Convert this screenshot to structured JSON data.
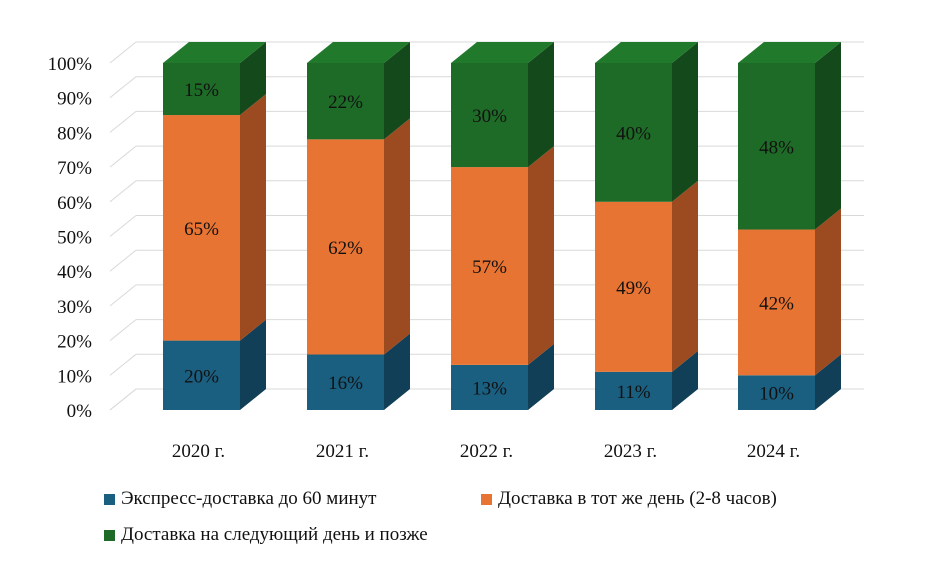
{
  "chart_data": {
    "type": "bar",
    "stacked": true,
    "percent": true,
    "three_d": true,
    "title": "",
    "xlabel": "",
    "ylabel": "",
    "ylim": [
      0,
      100
    ],
    "y_ticks": [
      "0%",
      "10%",
      "20%",
      "30%",
      "40%",
      "50%",
      "60%",
      "70%",
      "80%",
      "90%",
      "100%"
    ],
    "categories": [
      "2020 г.",
      "2021 г.",
      "2022 г.",
      "2023 г.",
      "2024 г."
    ],
    "series": [
      {
        "name": "Экспресс-доставка до 60 минут",
        "values": [
          20,
          16,
          13,
          11,
          10
        ],
        "labels": [
          "20%",
          "16%",
          "13%",
          "11%",
          "10%"
        ],
        "color": "#1a5f80",
        "side_color": "#113f57",
        "top_color": "#1e6c91"
      },
      {
        "name": "Доставка в тот же день (2-8 часов)",
        "values": [
          65,
          62,
          57,
          49,
          42
        ],
        "labels": [
          "65%",
          "62%",
          "57%",
          "49%",
          "42%"
        ],
        "color": "#e87433",
        "side_color": "#9c4a1f",
        "top_color": "#f08a4e"
      },
      {
        "name": "Доставка на следующий день и позже",
        "values": [
          15,
          22,
          30,
          40,
          48
        ],
        "labels": [
          "15%",
          "22%",
          "30%",
          "40%",
          "48%"
        ],
        "color": "#1e6b27",
        "side_color": "#144a1b",
        "top_color": "#217a2b"
      }
    ],
    "grid": true,
    "legend_position": "bottom"
  }
}
